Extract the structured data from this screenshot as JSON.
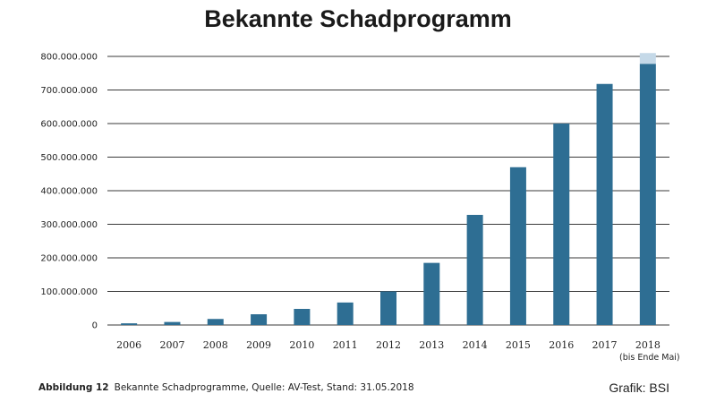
{
  "chart_data": {
    "type": "bar",
    "title": "Bekannte Schadprogramm",
    "categories": [
      "2006",
      "2007",
      "2008",
      "2009",
      "2010",
      "2011",
      "2012",
      "2013",
      "2014",
      "2015",
      "2016",
      "2017",
      "2018"
    ],
    "category_sublabels": {
      "2018": "(bis Ende Mai)"
    },
    "values": [
      5000000,
      9000000,
      18000000,
      32000000,
      48000000,
      67000000,
      100000000,
      185000000,
      328000000,
      470000000,
      600000000,
      718000000,
      778000000
    ],
    "extension": {
      "category": "2018",
      "value": 32000000,
      "color": "#c5d9e8"
    },
    "ylim": [
      0,
      800000000
    ],
    "yticks": [
      0,
      100000000,
      200000000,
      300000000,
      400000000,
      500000000,
      600000000,
      700000000,
      800000000
    ],
    "ytick_labels": [
      "0",
      "100.000.000",
      "200.000.000",
      "300.000.000",
      "400.000.000",
      "500.000.000",
      "600.000.000",
      "700.000.000",
      "800.000.000"
    ],
    "bar_color": "#2e6e93",
    "grid": true,
    "xlabel": "",
    "ylabel": ""
  },
  "caption": {
    "label": "Abbildung 12",
    "text": "Bekannte Schadprogramme, Quelle: AV-Test, Stand: 31.05.2018"
  },
  "credit": "Grafik: BSI"
}
